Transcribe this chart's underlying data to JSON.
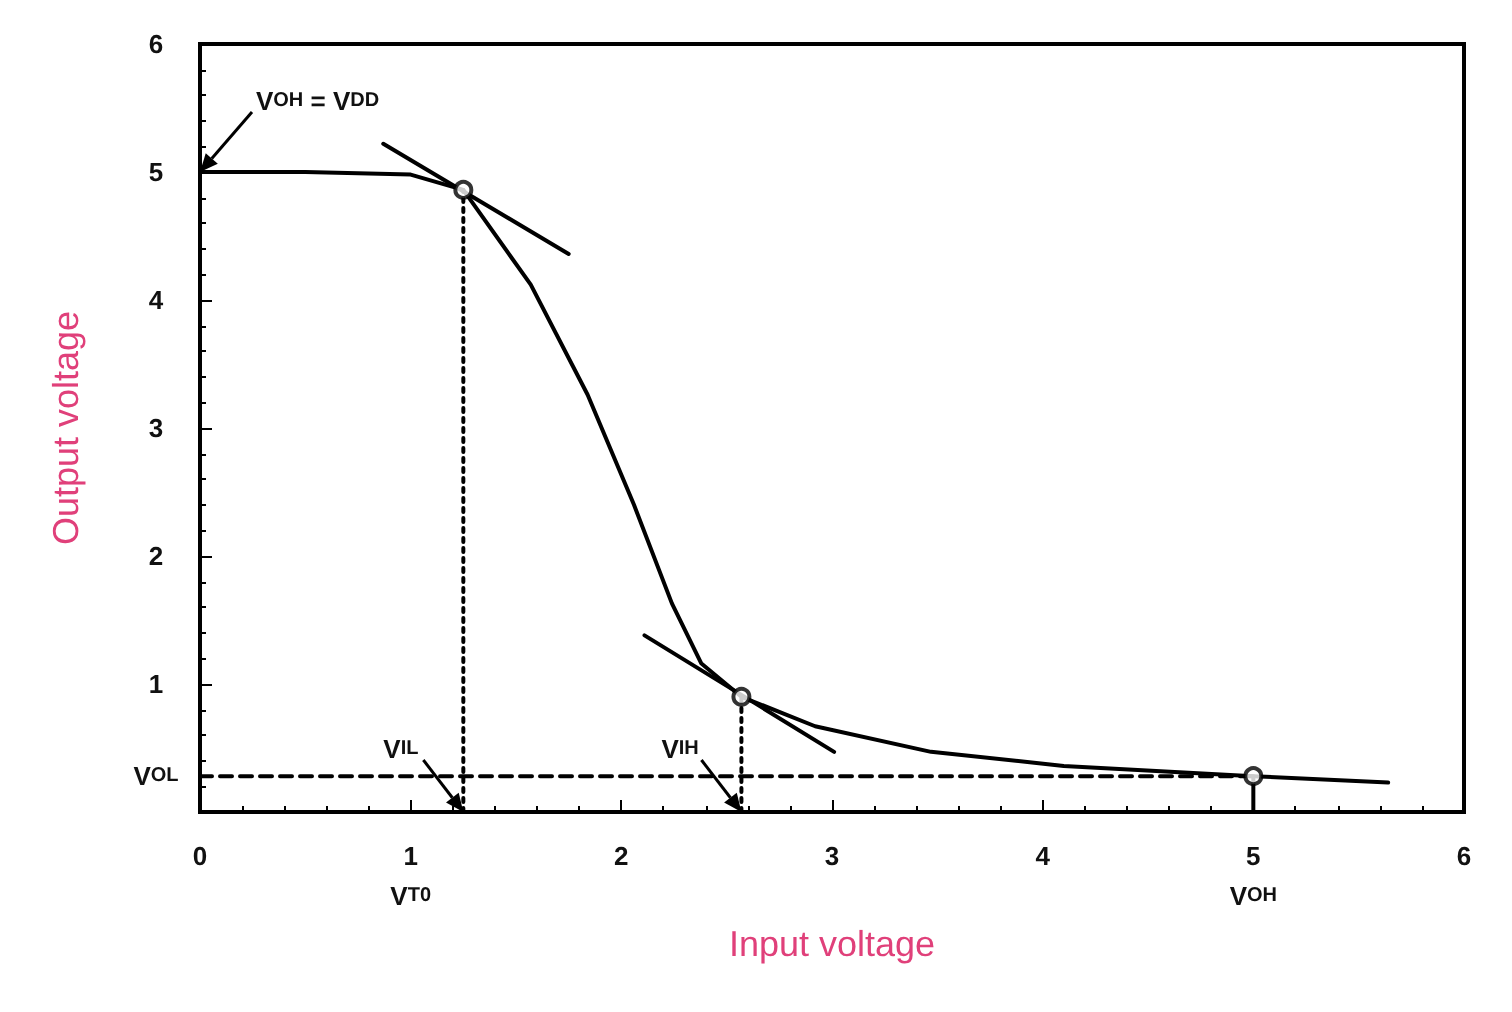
{
  "chart_data": {
    "type": "line",
    "xlabel": "Input voltage",
    "ylabel": "Output voltage",
    "xlim": [
      0,
      6
    ],
    "ylim": [
      0,
      6
    ],
    "xticks": [
      0,
      {
        "value": 1,
        "label": "1\nV$_{T0}$"
      },
      2,
      3,
      4,
      {
        "value": 5,
        "label": "5\nV$_{OH}$"
      },
      6
    ],
    "yticks": [
      {
        "value": 0.28,
        "label": "V$_{OL}$"
      },
      1,
      2,
      3,
      4,
      5,
      6
    ],
    "grid": false,
    "series": [
      {
        "type": "line",
        "color": "#000000",
        "line_style": "solid",
        "marker": "none",
        "x": [
          0,
          0.5,
          1.0,
          1.25,
          1.57,
          1.84,
          2.06,
          2.24,
          2.38,
          2.57,
          2.92,
          3.47,
          4.1,
          5.0,
          5.64
        ],
        "values": [
          5,
          5,
          4.98,
          4.86,
          4.12,
          3.26,
          2.4,
          1.63,
          1.16,
          0.9,
          0.67,
          0.47,
          0.36,
          0.28,
          0.23
        ]
      },
      {
        "type": "line",
        "color": "#000000",
        "line_style": "solid",
        "marker": "none",
        "x": [
          0.87,
          1.75
        ],
        "values": [
          5.22,
          4.36
        ]
      },
      {
        "type": "line",
        "color": "#000000",
        "line_style": "solid",
        "marker": "none",
        "x": [
          2.11,
          3.01
        ],
        "values": [
          1.38,
          0.47
        ]
      },
      {
        "type": "line",
        "color": "#000000",
        "line_style": "dotted",
        "marker": "none",
        "x": [
          1.25,
          1.25
        ],
        "values": [
          0,
          4.86
        ]
      },
      {
        "type": "line",
        "color": "#000000",
        "line_style": "dotted",
        "marker": "none",
        "x": [
          2.57,
          2.57
        ],
        "values": [
          0,
          0.9
        ]
      },
      {
        "type": "line",
        "color": "#000000",
        "line_style": "dashed",
        "marker": "none",
        "x": [
          0,
          5
        ],
        "values": [
          0.28,
          0.28
        ]
      },
      {
        "type": "line",
        "color": "#000000",
        "line_style": "solid",
        "marker": "none",
        "x": [
          5,
          5
        ],
        "values": [
          0,
          0.28
        ]
      },
      {
        "type": "scatter",
        "color": "#000000",
        "marker": "circle",
        "x": [
          1.25,
          2.57,
          5.0
        ],
        "values": [
          4.86,
          0.9,
          0.28
        ]
      }
    ],
    "annotations": [
      {
        "text": "V$_{OH}$ = V$_{DD}$",
        "x": 0,
        "y": 5
      },
      {
        "text": "V$_{IL}$",
        "x": 1.25,
        "y": 0
      },
      {
        "text": "V$_{IH}$",
        "x": 2.57,
        "y": 0
      }
    ]
  }
}
